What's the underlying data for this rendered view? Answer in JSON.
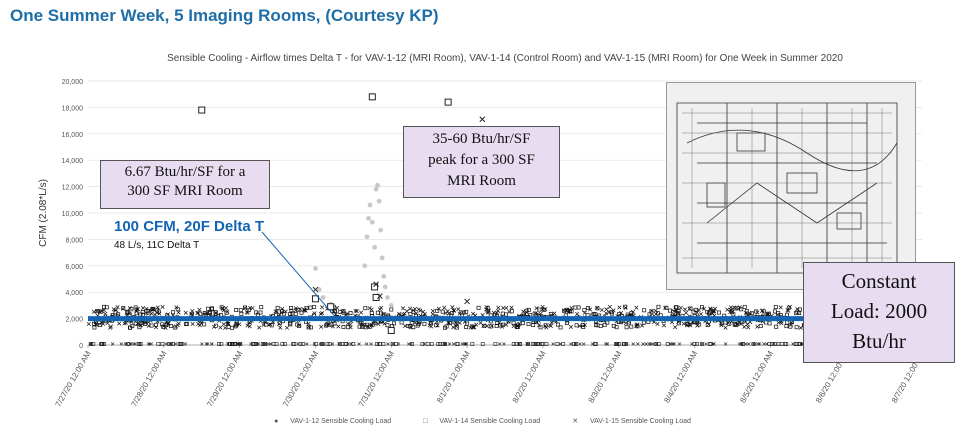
{
  "slide_title": "One Summer Week, 5 Imaging Rooms, (Courtesy KP)",
  "annotations": {
    "callout_left": [
      "6.67 Btu/hr/SF for a",
      "300 SF MRI Room"
    ],
    "callout_mid": [
      "35-60 Btu/hr/SF",
      "peak for a 300 SF",
      "MRI Room"
    ],
    "callout_right": [
      "Constant",
      "Load: 2000",
      "Btu/hr"
    ],
    "blue_label": "100 CFM, 20F Delta T",
    "small_label": "48 L/s, 11C Delta T"
  },
  "colors": {
    "title": "#1f6ea8",
    "baseline": "#1464b4",
    "callout_fill": "#e8dcf0",
    "series1": "#c8c8c8",
    "series2": "#222222",
    "series3": "#222222"
  },
  "chart_data": {
    "type": "scatter",
    "title": "Sensible Cooling - Airflow times Delta T - for VAV-1-12 (MRI Room), VAV-1-14 (Control Room) and VAV-1-15 (MRI Room) for One Week in Summer 2020",
    "ylabel": "CFM (2.08*L/s)",
    "ylim": [
      0,
      20000
    ],
    "yticks": [
      "0",
      "2,000",
      "4,000",
      "6,000",
      "8,000",
      "10,000",
      "12,000",
      "14,000",
      "16,000",
      "18,000",
      "20,000"
    ],
    "xticks": [
      "7/27/20 12:00 AM",
      "7/28/20 12:00 AM",
      "7/29/20 12:00 AM",
      "7/30/20 12:00 AM",
      "7/31/20 12:00 AM",
      "8/1/20 12:00 AM",
      "8/2/20 12:00 AM",
      "8/3/20 12:00 AM",
      "8/4/20 12:00 AM",
      "8/5/20 12:00 AM",
      "8/6/20 12:00 AM",
      "8/7/20 12:00 AM"
    ],
    "xlim": [
      0,
      11
    ],
    "grid": true,
    "legend_position": "bottom",
    "reference_line": {
      "y": 2000,
      "label": "100 CFM, 20F Delta T"
    },
    "series": [
      {
        "name": "VAV-1-12 Sensible Cooling Load",
        "marker": "circle",
        "points": [
          [
            3.0,
            5800
          ],
          [
            3.05,
            4200
          ],
          [
            3.1,
            3600
          ],
          [
            3.2,
            3100
          ],
          [
            3.65,
            6000
          ],
          [
            3.68,
            8200
          ],
          [
            3.7,
            9600
          ],
          [
            3.72,
            10600
          ],
          [
            3.75,
            9300
          ],
          [
            3.78,
            7400
          ],
          [
            3.8,
            11800
          ],
          [
            3.82,
            12100
          ],
          [
            3.84,
            10900
          ],
          [
            3.86,
            8700
          ],
          [
            3.88,
            6600
          ],
          [
            3.9,
            5200
          ],
          [
            3.92,
            4400
          ],
          [
            3.95,
            3600
          ],
          [
            4.0,
            3000
          ]
        ]
      },
      {
        "name": "VAV-1-14 Sensible Cooling Load",
        "marker": "square",
        "points": [
          [
            1.5,
            17800
          ],
          [
            3.0,
            3500
          ],
          [
            3.2,
            2900
          ],
          [
            3.75,
            18800
          ],
          [
            3.78,
            4400
          ],
          [
            3.8,
            3600
          ],
          [
            4.75,
            18400
          ],
          [
            4.0,
            1100
          ]
        ]
      },
      {
        "name": "VAV-1-15 Sensible Cooling Load",
        "marker": "x",
        "points": [
          [
            5.2,
            17100
          ],
          [
            8.2,
            16800
          ],
          [
            3.0,
            4200
          ],
          [
            3.8,
            4600
          ],
          [
            3.85,
            3700
          ],
          [
            5.0,
            3300
          ]
        ]
      }
    ],
    "baseline_band": {
      "low": 1300,
      "high": 2900
    },
    "zero_markers_note": "dense markers along y=0"
  },
  "legend": [
    "VAV-1-12 Sensible Cooling Load",
    "VAV-1-14 Sensible Cooling Load",
    "VAV-1-15 Sensible Cooling Load"
  ]
}
